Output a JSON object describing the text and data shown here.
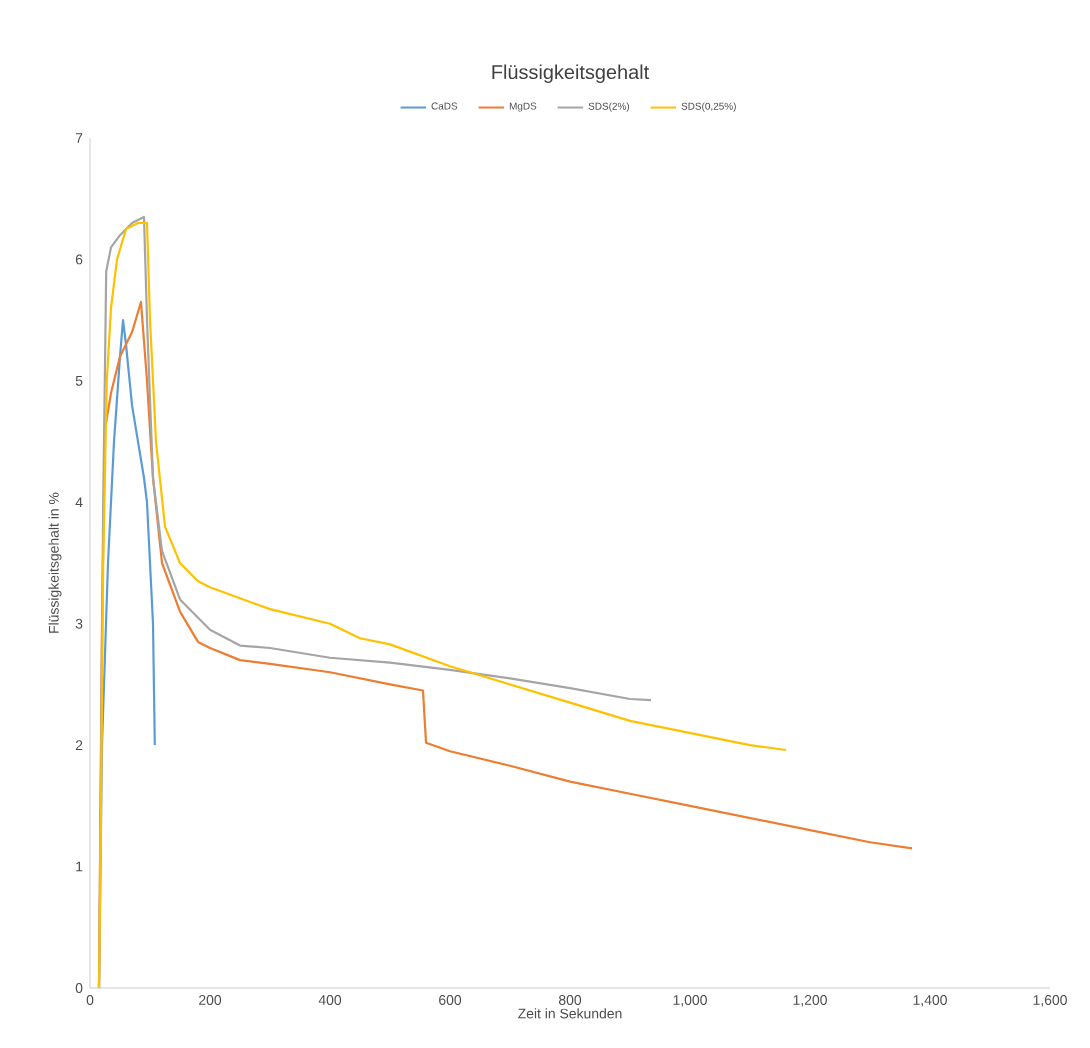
{
  "chart_data": {
    "type": "line",
    "title": "Flüssigkeitsgehalt",
    "xlabel": "Zeit in Sekunden",
    "ylabel": "Flüssigkeitsgehalt in %",
    "legend": "top",
    "grid": false,
    "marker": "none",
    "line_style": "solid",
    "xlim": [
      0,
      1600
    ],
    "ylim": [
      0,
      7
    ],
    "xticks": [
      0,
      200,
      400,
      600,
      800,
      {
        "value": 1000,
        "label": "1,000"
      },
      {
        "value": 1200,
        "label": "1,200"
      },
      {
        "value": 1400,
        "label": "1,400"
      },
      {
        "value": 1600,
        "label": "1,600"
      }
    ],
    "yticks": [
      0,
      1,
      2,
      3,
      4,
      5,
      6,
      7
    ],
    "series": [
      {
        "name": "CaDS",
        "color": "#5b9bd5",
        "x": [
          15,
          20,
          30,
          40,
          50,
          55,
          60,
          70,
          80,
          90,
          95,
          100,
          105,
          108
        ],
        "values": [
          0,
          2,
          3.5,
          4.5,
          5.2,
          5.5,
          5.3,
          4.8,
          4.5,
          4.2,
          4.0,
          3.5,
          3.0,
          2.0
        ]
      },
      {
        "name": "MgDS",
        "color": "#ed7d31",
        "x": [
          15,
          20,
          25,
          35,
          50,
          70,
          85,
          95,
          105,
          120,
          150,
          180,
          200,
          250,
          300,
          400,
          500,
          555,
          560,
          600,
          700,
          800,
          900,
          1000,
          1100,
          1200,
          1300,
          1370
        ],
        "values": [
          0,
          3,
          4.6,
          4.9,
          5.2,
          5.4,
          5.65,
          5.0,
          4.2,
          3.5,
          3.1,
          2.85,
          2.8,
          2.7,
          2.67,
          2.6,
          2.5,
          2.45,
          2.02,
          1.95,
          1.83,
          1.7,
          1.6,
          1.5,
          1.4,
          1.3,
          1.2,
          1.15
        ]
      },
      {
        "name": "SDS(2%)",
        "color": "#a5a5a5",
        "x": [
          15,
          18,
          22,
          27,
          35,
          50,
          70,
          90,
          95,
          105,
          120,
          150,
          200,
          250,
          300,
          400,
          500,
          600,
          700,
          800,
          900,
          935
        ],
        "values": [
          0,
          null,
          4,
          5.9,
          6.1,
          6.2,
          6.3,
          6.35,
          5.5,
          4.2,
          3.6,
          3.2,
          2.95,
          2.82,
          2.8,
          2.72,
          2.68,
          2.62,
          2.55,
          2.47,
          2.38,
          2.37
        ]
      },
      {
        "name": "SDS(0,25%)",
        "color": "#ffc000",
        "x": [
          15,
          18,
          22,
          28,
          35,
          45,
          60,
          80,
          95,
          100,
          110,
          125,
          150,
          180,
          200,
          300,
          400,
          450,
          500,
          600,
          700,
          800,
          900,
          1000,
          1100,
          1160
        ],
        "values": [
          0,
          1.3,
          3.5,
          5.0,
          5.6,
          6.0,
          6.25,
          6.3,
          6.3,
          5.5,
          4.5,
          3.8,
          3.5,
          3.35,
          3.3,
          3.12,
          3.0,
          2.88,
          2.83,
          2.65,
          2.5,
          2.35,
          2.2,
          2.1,
          2.0,
          1.96
        ]
      }
    ]
  }
}
